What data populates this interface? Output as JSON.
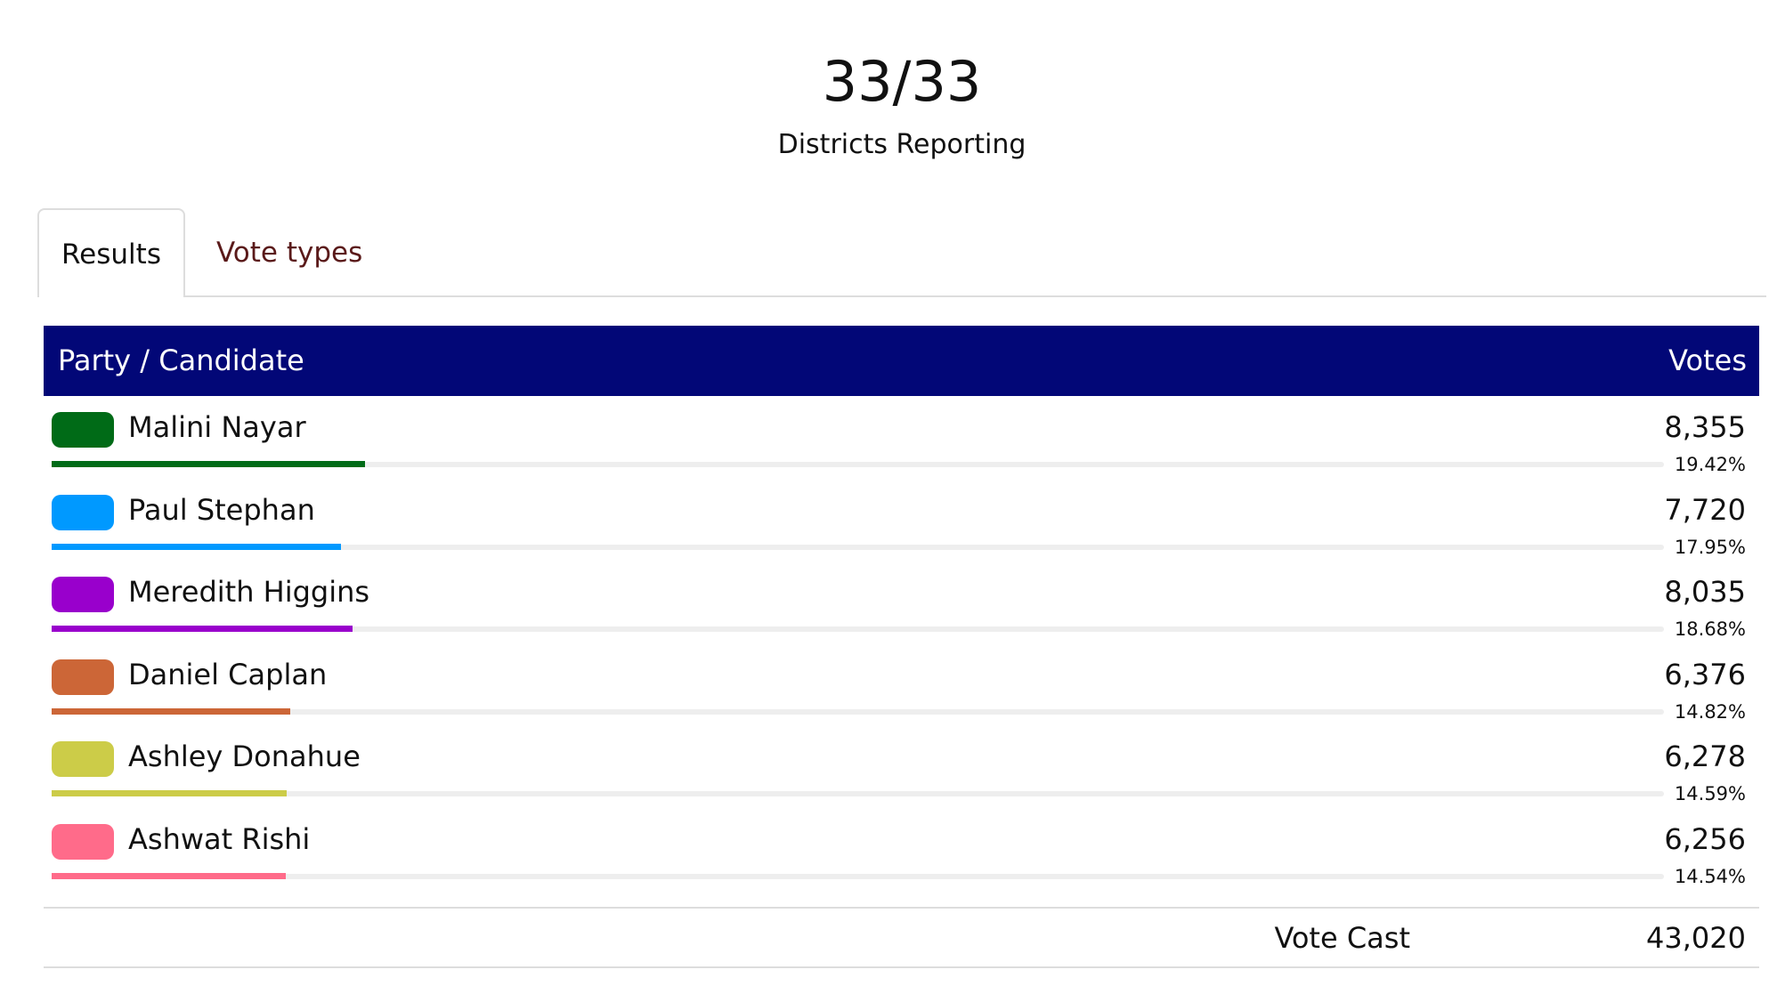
{
  "header": {
    "count": "33/33",
    "subtitle": "Districts Reporting"
  },
  "tabs": [
    "Results",
    "Vote types"
  ],
  "table": {
    "columns": [
      "Party / Candidate",
      "Votes"
    ],
    "rows": [
      {
        "name": "Malini Nayar",
        "color": "#006b17",
        "votes": "8,355",
        "share": 19.42,
        "share_label": "19.42%"
      },
      {
        "name": "Paul Stephan",
        "color": "#0099ff",
        "votes": "7,720",
        "share": 17.95,
        "share_label": "17.95%"
      },
      {
        "name": "Meredith Higgins",
        "color": "#9900cc",
        "votes": "8,035",
        "share": 18.68,
        "share_label": "18.68%"
      },
      {
        "name": "Daniel Caplan",
        "color": "#cc6637",
        "votes": "6,376",
        "share": 14.82,
        "share_label": "14.82%"
      },
      {
        "name": "Ashley Donahue",
        "color": "#cccc48",
        "votes": "6,278",
        "share": 14.59,
        "share_label": "14.59%"
      },
      {
        "name": "Ashwat Rishi",
        "color": "#ff6b8a",
        "votes": "6,256",
        "share": 14.54,
        "share_label": "14.54%"
      }
    ],
    "footer": {
      "label": "Vote Cast",
      "total": "43,020"
    }
  }
}
